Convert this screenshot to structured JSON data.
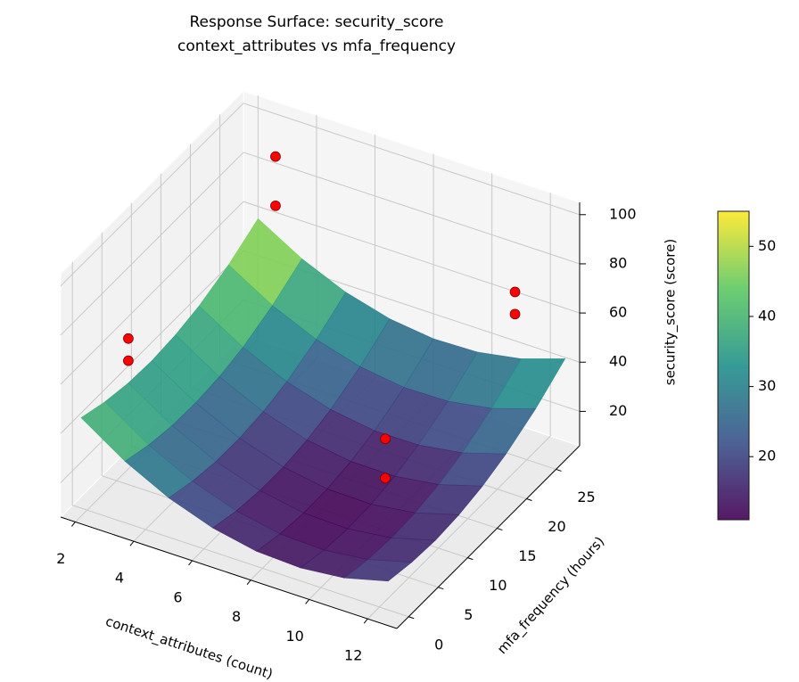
{
  "chart_data": {
    "type": "surface3d",
    "title": "Response Surface: security_score",
    "subtitle": "context_attributes vs mfa_frequency",
    "xlabel": "context_attributes (count)",
    "ylabel": "mfa_frequency (hours)",
    "zlabel": "security_score (score)",
    "xlim": [
      1.5,
      13
    ],
    "ylim": [
      -2,
      29
    ],
    "zlim": [
      6,
      105
    ],
    "xticks": [
      2,
      4,
      6,
      8,
      10,
      12
    ],
    "yticks": [
      0,
      5,
      10,
      15,
      20,
      25
    ],
    "zticks": [
      20,
      40,
      60,
      80,
      100
    ],
    "colormap": "viridis",
    "colorbar": {
      "lim": [
        11,
        55
      ],
      "ticks": [
        20,
        30,
        40,
        50
      ]
    },
    "surface": {
      "x": [
        2,
        3.5,
        5,
        6.5,
        8,
        9.5,
        11,
        12.5
      ],
      "y": [
        -1,
        3,
        7,
        11,
        15,
        19,
        24,
        29
      ],
      "z": [
        [
          46.0,
          34.2,
          25.2,
          18.9,
          15.3,
          14.5,
          16.3,
          20.9
        ],
        [
          42.8,
          31.2,
          22.4,
          16.2,
          12.8,
          12.1,
          14.2,
          19.0
        ],
        [
          40.9,
          29.5,
          20.8,
          14.9,
          11.7,
          11.2,
          13.4,
          18.3
        ],
        [
          40.4,
          29.2,
          20.7,
          14.9,
          11.9,
          11.6,
          14.0,
          19.1
        ],
        [
          41.3,
          30.2,
          21.9,
          16.3,
          13.5,
          13.4,
          15.9,
          21.2
        ],
        [
          43.5,
          32.6,
          24.5,
          19.1,
          16.4,
          16.5,
          19.2,
          24.7
        ],
        [
          48.2,
          37.6,
          29.7,
          24.5,
          22.0,
          22.3,
          25.3,
          31.0
        ],
        [
          55.0,
          44.6,
          36.9,
          32.0,
          29.8,
          30.3,
          33.5,
          39.4
        ]
      ]
    },
    "points": {
      "color": "#ff0000",
      "x": [
        3,
        3,
        2,
        2,
        12,
        12,
        12,
        12
      ],
      "y": [
        27,
        27,
        7,
        7,
        23,
        23,
        1,
        1
      ],
      "z": [
        89,
        69,
        59,
        50,
        79,
        70,
        72,
        56
      ]
    }
  }
}
